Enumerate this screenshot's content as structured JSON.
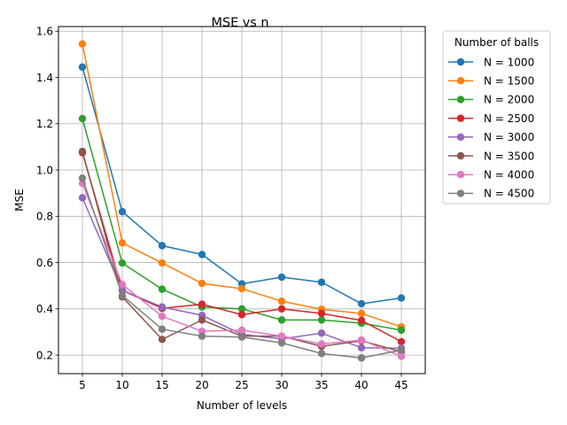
{
  "chart_data": {
    "type": "line",
    "title": "MSE vs n",
    "xlabel": "Number of levels",
    "ylabel": "MSE",
    "x": [
      5,
      10,
      15,
      20,
      25,
      30,
      35,
      40,
      45
    ],
    "xlim": [
      2.0,
      48.0
    ],
    "ylim": [
      0.12,
      1.62
    ],
    "xticks": [
      "5",
      "10",
      "15",
      "20",
      "25",
      "30",
      "35",
      "40",
      "45"
    ],
    "yticks": [
      "0.2",
      "0.4",
      "0.6",
      "0.8",
      "1.0",
      "1.2",
      "1.4",
      "1.6"
    ],
    "grid": true,
    "legend": {
      "title": "Number of balls",
      "placement": "outside-top-right"
    },
    "series": [
      {
        "name": "N = 1000",
        "color": "#1f77b4",
        "values": [
          1.445,
          0.82,
          0.673,
          0.635,
          0.508,
          0.537,
          0.515,
          0.422,
          0.447
        ]
      },
      {
        "name": "N = 1500",
        "color": "#ff7f0e",
        "values": [
          1.545,
          0.685,
          0.598,
          0.51,
          0.487,
          0.433,
          0.398,
          0.38,
          0.322
        ]
      },
      {
        "name": "N = 2000",
        "color": "#2ca02c",
        "values": [
          1.222,
          0.598,
          0.485,
          0.408,
          0.4,
          0.352,
          0.352,
          0.338,
          0.308
        ]
      },
      {
        "name": "N = 2500",
        "color": "#d62728",
        "values": [
          1.075,
          0.48,
          0.402,
          0.42,
          0.375,
          0.4,
          0.38,
          0.35,
          0.258
        ]
      },
      {
        "name": "N = 3000",
        "color": "#9467bd",
        "values": [
          0.88,
          0.48,
          0.408,
          0.372,
          0.29,
          0.27,
          0.295,
          0.232,
          0.23
        ]
      },
      {
        "name": "N = 3500",
        "color": "#8c564b",
        "values": [
          1.08,
          0.452,
          0.268,
          0.352,
          0.282,
          0.282,
          0.238,
          0.262,
          0.215
        ]
      },
      {
        "name": "N = 4000",
        "color": "#e377c2",
        "values": [
          0.942,
          0.505,
          0.368,
          0.303,
          0.308,
          0.282,
          0.248,
          0.265,
          0.195
        ]
      },
      {
        "name": "N = 4500",
        "color": "#7f7f7f",
        "values": [
          0.965,
          0.458,
          0.312,
          0.282,
          0.278,
          0.253,
          0.207,
          0.188,
          0.222
        ]
      }
    ]
  }
}
